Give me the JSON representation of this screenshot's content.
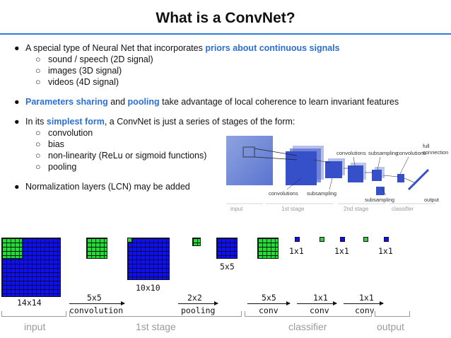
{
  "title": "What is a ConvNet?",
  "bullet_glyph": "●",
  "sub_glyph": "○",
  "bullets": {
    "b1": {
      "pre": "A special type of Neural Net that incorporates ",
      "hl": "priors about continuous signals"
    },
    "b1_subs": [
      "sound / speech (2D signal)",
      "images (3D signal)",
      "videos (4D signal)"
    ],
    "b2": {
      "hl1": "Parameters sharing",
      "mid1": " and ",
      "hl2": "pooling",
      "post": " take advantage of local coherence to learn invariant features"
    },
    "b3": {
      "pre": "In its ",
      "hl": "simplest form",
      "post": ", a ConvNet is just a series of stages of the form:"
    },
    "b3_subs": [
      "convolution",
      "bias",
      "non-linearity (ReLu or sigmoid functions)",
      "pooling"
    ],
    "b4": "Normalization layers (LCN) may be added"
  },
  "figure_top": {
    "labels": {
      "convolutions1": "convolutions",
      "subsampling1": "subsampling",
      "convolutions2": "convolutions",
      "subsampling2": "subsampling",
      "convolutions3": "convolutions",
      "full_connection": "full\nconnection",
      "subsampling3": "subsampling",
      "output": "output"
    },
    "groups": {
      "input": "input",
      "stage1": "1st stage",
      "stage2": "2nd stage",
      "classifier": "classifier"
    }
  },
  "figure_bottom": {
    "sizes": {
      "input": "14x14",
      "pooled": "10x10",
      "pool_out": "5x5",
      "one1": "1x1",
      "one2": "1x1",
      "one3": "1x1"
    },
    "ops": [
      {
        "size": "5x5",
        "name": "convolution"
      },
      {
        "size": "2x2",
        "name": "pooling"
      },
      {
        "size": "5x5",
        "name": "conv"
      },
      {
        "size": "1x1",
        "name": "conv"
      },
      {
        "size": "1x1",
        "name": "conv"
      }
    ],
    "groups": {
      "input": "input",
      "stage1": "1st stage",
      "classifier": "classifier",
      "output": "output"
    },
    "colors": {
      "feature_map": "#1010e8",
      "kernel": "#27d93a",
      "accent": "#2b6fd6"
    }
  }
}
